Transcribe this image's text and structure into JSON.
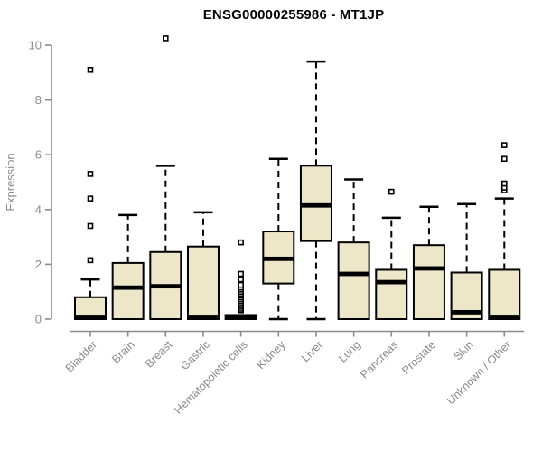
{
  "title": "ENSG00000255986 - MT1JP",
  "colors": {
    "background": "#FFFFFF",
    "box_fill": "#EDE6C8",
    "box_border": "#000000",
    "median": "#000000",
    "whisker": "#000000",
    "outlier_fill": "#FFFFFF",
    "outlier_border": "#000000",
    "axis": "#8A8A8A",
    "tick_text": "#8A8A8A",
    "title_text": "#000000"
  },
  "chart_data": {
    "type": "boxplot",
    "title": "ENSG00000255986 - MT1JP",
    "xlabel": "",
    "ylabel": "Expression",
    "ylim": [
      0,
      10
    ],
    "yticks": [
      0,
      2,
      4,
      6,
      8,
      10
    ],
    "grid": false,
    "legend": false,
    "categories": [
      "Bladder",
      "Brain",
      "Breast",
      "Gastric",
      "Hematopoietic cells",
      "Kidney",
      "Liver",
      "Lung",
      "Pancreas",
      "Prostate",
      "Skin",
      "Unknown / Other"
    ],
    "boxes": [
      {
        "category": "Bladder",
        "low": 0,
        "q1": 0,
        "median": 0.05,
        "q3": 0.8,
        "high": 1.45,
        "outliers": [
          2.15,
          3.4,
          4.4,
          5.3,
          9.1
        ]
      },
      {
        "category": "Brain",
        "low": 0,
        "q1": 0,
        "median": 1.15,
        "q3": 2.05,
        "high": 3.8,
        "outliers": []
      },
      {
        "category": "Breast",
        "low": 0,
        "q1": 0,
        "median": 1.2,
        "q3": 2.45,
        "high": 5.6,
        "outliers": [
          10.25
        ]
      },
      {
        "category": "Gastric",
        "low": 0,
        "q1": 0,
        "median": 0.05,
        "q3": 2.65,
        "high": 3.9,
        "outliers": []
      },
      {
        "category": "Hematopoietic cells",
        "low": 0,
        "q1": 0,
        "median": 0.07,
        "q3": 0.15,
        "high": 0.15,
        "outliers": [
          0.32,
          0.38,
          0.45,
          0.51,
          0.58,
          0.65,
          0.72,
          0.79,
          0.86,
          0.93,
          1.0,
          1.08,
          1.15,
          1.25,
          1.45,
          1.65,
          2.8
        ]
      },
      {
        "category": "Kidney",
        "low": 0,
        "q1": 1.3,
        "median": 2.2,
        "q3": 3.2,
        "high": 5.85,
        "outliers": []
      },
      {
        "category": "Liver",
        "low": 0,
        "q1": 2.85,
        "median": 4.15,
        "q3": 5.6,
        "high": 9.4,
        "outliers": []
      },
      {
        "category": "Lung",
        "low": 0,
        "q1": 0,
        "median": 1.65,
        "q3": 2.8,
        "high": 5.1,
        "outliers": []
      },
      {
        "category": "Pancreas",
        "low": 0,
        "q1": 0,
        "median": 1.35,
        "q3": 1.8,
        "high": 3.7,
        "outliers": [
          4.65
        ]
      },
      {
        "category": "Prostate",
        "low": 0,
        "q1": 0,
        "median": 1.85,
        "q3": 2.7,
        "high": 4.1,
        "outliers": []
      },
      {
        "category": "Skin",
        "low": 0,
        "q1": 0,
        "median": 0.25,
        "q3": 1.7,
        "high": 4.2,
        "outliers": []
      },
      {
        "category": "Unknown / Other",
        "low": 0,
        "q1": 0,
        "median": 0.05,
        "q3": 1.8,
        "high": 4.4,
        "outliers": [
          4.7,
          4.8,
          4.95,
          5.85,
          6.35
        ]
      }
    ]
  }
}
